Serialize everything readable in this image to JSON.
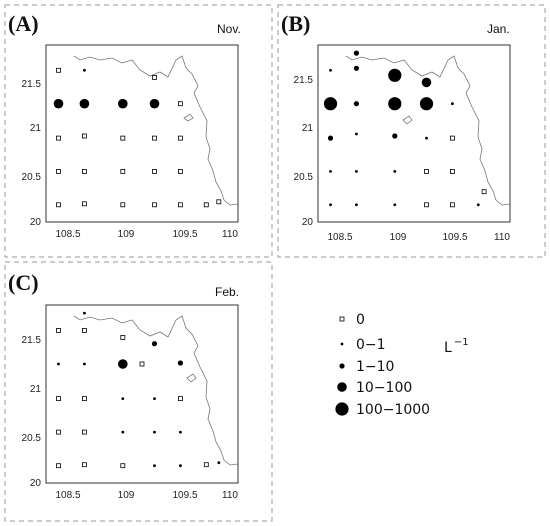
{
  "chart_data": [
    {
      "type": "scatter",
      "panel_label": "(A)",
      "month": "Nov.",
      "x_ticks": [
        "108.5",
        "109",
        "109.5",
        "110"
      ],
      "y_ticks": [
        "20",
        "20.5",
        "21",
        "21.5"
      ],
      "xlim": [
        108.2,
        110.2
      ],
      "ylim": [
        20.0,
        21.75
      ],
      "points": [
        {
          "lon": 108.33,
          "lat": 21.5,
          "cls": "0"
        },
        {
          "lon": 108.6,
          "lat": 21.5,
          "cls": "0-1"
        },
        {
          "lon": 109.33,
          "lat": 21.43,
          "cls": "0"
        },
        {
          "lon": 108.33,
          "lat": 21.17,
          "cls": "10-100"
        },
        {
          "lon": 108.6,
          "lat": 21.17,
          "cls": "10-100"
        },
        {
          "lon": 109.0,
          "lat": 21.17,
          "cls": "10-100"
        },
        {
          "lon": 109.33,
          "lat": 21.17,
          "cls": "10-100"
        },
        {
          "lon": 109.6,
          "lat": 21.17,
          "cls": "0"
        },
        {
          "lon": 108.33,
          "lat": 20.83,
          "cls": "0"
        },
        {
          "lon": 108.6,
          "lat": 20.85,
          "cls": "0"
        },
        {
          "lon": 109.0,
          "lat": 20.83,
          "cls": "0"
        },
        {
          "lon": 109.33,
          "lat": 20.83,
          "cls": "0"
        },
        {
          "lon": 109.6,
          "lat": 20.83,
          "cls": "0"
        },
        {
          "lon": 108.33,
          "lat": 20.5,
          "cls": "0"
        },
        {
          "lon": 108.6,
          "lat": 20.5,
          "cls": "0"
        },
        {
          "lon": 109.0,
          "lat": 20.5,
          "cls": "0"
        },
        {
          "lon": 109.33,
          "lat": 20.5,
          "cls": "0"
        },
        {
          "lon": 109.6,
          "lat": 20.5,
          "cls": "0"
        },
        {
          "lon": 108.33,
          "lat": 20.17,
          "cls": "0"
        },
        {
          "lon": 108.6,
          "lat": 20.18,
          "cls": "0"
        },
        {
          "lon": 109.0,
          "lat": 20.17,
          "cls": "0"
        },
        {
          "lon": 109.33,
          "lat": 20.17,
          "cls": "0"
        },
        {
          "lon": 109.6,
          "lat": 20.17,
          "cls": "0"
        },
        {
          "lon": 109.87,
          "lat": 20.17,
          "cls": "0"
        },
        {
          "lon": 110.0,
          "lat": 20.2,
          "cls": "0"
        }
      ]
    },
    {
      "type": "scatter",
      "panel_label": "(B)",
      "month": "Jan.",
      "x_ticks": [
        "108.5",
        "109",
        "109.5",
        "110"
      ],
      "y_ticks": [
        "20",
        "20.5",
        "21",
        "21.5"
      ],
      "xlim": [
        108.2,
        110.2
      ],
      "ylim": [
        20.0,
        21.75
      ],
      "points": [
        {
          "lon": 108.33,
          "lat": 21.5,
          "cls": "0-1"
        },
        {
          "lon": 108.6,
          "lat": 21.52,
          "cls": "1-10"
        },
        {
          "lon": 108.6,
          "lat": 21.67,
          "cls": "1-10"
        },
        {
          "lon": 109.0,
          "lat": 21.45,
          "cls": "100-1000"
        },
        {
          "lon": 109.33,
          "lat": 21.38,
          "cls": "10-100"
        },
        {
          "lon": 108.33,
          "lat": 21.17,
          "cls": "100-1000"
        },
        {
          "lon": 108.6,
          "lat": 21.17,
          "cls": "1-10"
        },
        {
          "lon": 109.0,
          "lat": 21.17,
          "cls": "100-1000"
        },
        {
          "lon": 109.33,
          "lat": 21.17,
          "cls": "100-1000"
        },
        {
          "lon": 109.6,
          "lat": 21.17,
          "cls": "0-1"
        },
        {
          "lon": 108.33,
          "lat": 20.83,
          "cls": "1-10"
        },
        {
          "lon": 108.6,
          "lat": 20.87,
          "cls": "0-1"
        },
        {
          "lon": 109.0,
          "lat": 20.85,
          "cls": "1-10"
        },
        {
          "lon": 109.33,
          "lat": 20.83,
          "cls": "0-1"
        },
        {
          "lon": 109.6,
          "lat": 20.83,
          "cls": "0"
        },
        {
          "lon": 108.33,
          "lat": 20.5,
          "cls": "0-1"
        },
        {
          "lon": 108.6,
          "lat": 20.5,
          "cls": "0-1"
        },
        {
          "lon": 109.0,
          "lat": 20.5,
          "cls": "0-1"
        },
        {
          "lon": 109.33,
          "lat": 20.5,
          "cls": "0"
        },
        {
          "lon": 109.6,
          "lat": 20.5,
          "cls": "0"
        },
        {
          "lon": 108.33,
          "lat": 20.17,
          "cls": "0-1"
        },
        {
          "lon": 108.6,
          "lat": 20.17,
          "cls": "0-1"
        },
        {
          "lon": 109.0,
          "lat": 20.17,
          "cls": "0-1"
        },
        {
          "lon": 109.33,
          "lat": 20.17,
          "cls": "0"
        },
        {
          "lon": 109.6,
          "lat": 20.17,
          "cls": "0"
        },
        {
          "lon": 109.87,
          "lat": 20.17,
          "cls": "0-1"
        },
        {
          "lon": 109.93,
          "lat": 20.3,
          "cls": "0"
        }
      ]
    },
    {
      "type": "scatter",
      "panel_label": "(C)",
      "month": "Feb.",
      "x_ticks": [
        "108.5",
        "109",
        "109.5",
        "110"
      ],
      "y_ticks": [
        "20",
        "20.5",
        "21",
        "21.5"
      ],
      "xlim": [
        108.2,
        110.2
      ],
      "ylim": [
        20.0,
        21.75
      ],
      "points": [
        {
          "lon": 108.33,
          "lat": 21.5,
          "cls": "0"
        },
        {
          "lon": 108.6,
          "lat": 21.5,
          "cls": "0"
        },
        {
          "lon": 108.6,
          "lat": 21.67,
          "cls": "0-1"
        },
        {
          "lon": 109.0,
          "lat": 21.43,
          "cls": "0"
        },
        {
          "lon": 109.33,
          "lat": 21.37,
          "cls": "1-10"
        },
        {
          "lon": 108.33,
          "lat": 21.17,
          "cls": "0-1"
        },
        {
          "lon": 108.6,
          "lat": 21.17,
          "cls": "0-1"
        },
        {
          "lon": 109.0,
          "lat": 21.17,
          "cls": "10-100"
        },
        {
          "lon": 109.2,
          "lat": 21.17,
          "cls": "0"
        },
        {
          "lon": 109.6,
          "lat": 21.18,
          "cls": "1-10"
        },
        {
          "lon": 108.33,
          "lat": 20.83,
          "cls": "0"
        },
        {
          "lon": 108.6,
          "lat": 20.83,
          "cls": "0"
        },
        {
          "lon": 109.0,
          "lat": 20.83,
          "cls": "0-1"
        },
        {
          "lon": 109.33,
          "lat": 20.83,
          "cls": "0-1"
        },
        {
          "lon": 109.6,
          "lat": 20.83,
          "cls": "0"
        },
        {
          "lon": 108.33,
          "lat": 20.5,
          "cls": "0"
        },
        {
          "lon": 108.6,
          "lat": 20.5,
          "cls": "0"
        },
        {
          "lon": 109.0,
          "lat": 20.5,
          "cls": "0-1"
        },
        {
          "lon": 109.33,
          "lat": 20.5,
          "cls": "0-1"
        },
        {
          "lon": 109.6,
          "lat": 20.5,
          "cls": "0-1"
        },
        {
          "lon": 108.33,
          "lat": 20.17,
          "cls": "0"
        },
        {
          "lon": 108.6,
          "lat": 20.18,
          "cls": "0"
        },
        {
          "lon": 109.0,
          "lat": 20.17,
          "cls": "0"
        },
        {
          "lon": 109.33,
          "lat": 20.17,
          "cls": "0-1"
        },
        {
          "lon": 109.6,
          "lat": 20.17,
          "cls": "0-1"
        },
        {
          "lon": 109.87,
          "lat": 20.18,
          "cls": "0"
        },
        {
          "lon": 110.0,
          "lat": 20.2,
          "cls": "0-1"
        }
      ]
    }
  ],
  "legend": {
    "unit_label": "L",
    "unit_exponent": "−1",
    "items": [
      {
        "label": "0",
        "cls": "0"
      },
      {
        "label": "0−1",
        "cls": "0-1"
      },
      {
        "label": "1−10",
        "cls": "1-10"
      },
      {
        "label": "10−100",
        "cls": "10-100"
      },
      {
        "label": "100−1000",
        "cls": "100-1000"
      }
    ]
  }
}
